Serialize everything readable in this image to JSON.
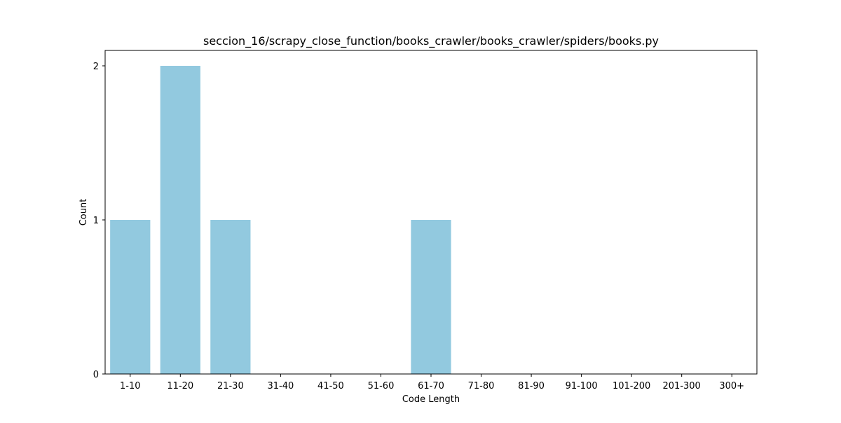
{
  "chart_data": {
    "type": "bar",
    "title": "seccion_16/scrapy_close_function/books_crawler/books_crawler/spiders/books.py",
    "xlabel": "Code Length",
    "ylabel": "Count",
    "categories": [
      "1-10",
      "11-20",
      "21-30",
      "31-40",
      "41-50",
      "51-60",
      "61-70",
      "71-80",
      "81-90",
      "91-100",
      "101-200",
      "201-300",
      "300+"
    ],
    "values": [
      1,
      2,
      1,
      0,
      0,
      0,
      1,
      0,
      0,
      0,
      0,
      0,
      0
    ],
    "ylim": [
      0,
      2.1
    ],
    "yticks": [
      0,
      1,
      2
    ],
    "grid": false,
    "legend": "none",
    "bar_color": "#92c9df"
  }
}
